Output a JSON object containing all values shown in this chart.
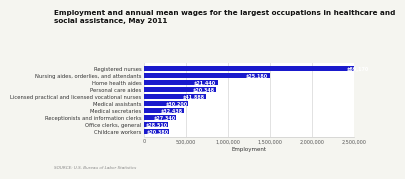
{
  "title": "Employment and annual mean wages for the largest occupations in healthcare and\nsocial assistance, May 2011",
  "source": "SOURCE: U.S. Bureau of Labor Statistics",
  "xlabel": "Employment",
  "categories": [
    "Registered nurses",
    "Nursing aides, orderlies, and attendants",
    "Home health aides",
    "Personal care aides",
    "Licensed practical and licensed vocational nurses",
    "Medical assistants",
    "Medical secretaries",
    "Receptionists and information clerks",
    "Office clerks, general",
    "Childcare workers"
  ],
  "employment": [
    2737000,
    1505000,
    875000,
    861000,
    738000,
    527000,
    471000,
    380000,
    290000,
    295000
  ],
  "wages": [
    "$69,170",
    "$25,180",
    "$21,440",
    "$20,348",
    "$41,888",
    "$30,200",
    "$32,438",
    "$27,340",
    "$28,510",
    "$20,380"
  ],
  "bar_color": "#1a1acc",
  "bg_color": "#f5f5f0",
  "plot_bg": "#ffffff",
  "grid_color": "#dddddd",
  "xlim": [
    0,
    2500000
  ],
  "xticks": [
    0,
    500000,
    1000000,
    1500000,
    2000000,
    2500000
  ],
  "xtick_labels": [
    "0",
    "500,000",
    "1,000,000",
    "1,500,000",
    "2,000,000",
    "2,500,000"
  ],
  "title_fontsize": 5.2,
  "label_fontsize": 3.8,
  "wage_fontsize": 3.5,
  "xlabel_fontsize": 4.0,
  "source_fontsize": 3.0,
  "tick_fontsize": 3.5
}
